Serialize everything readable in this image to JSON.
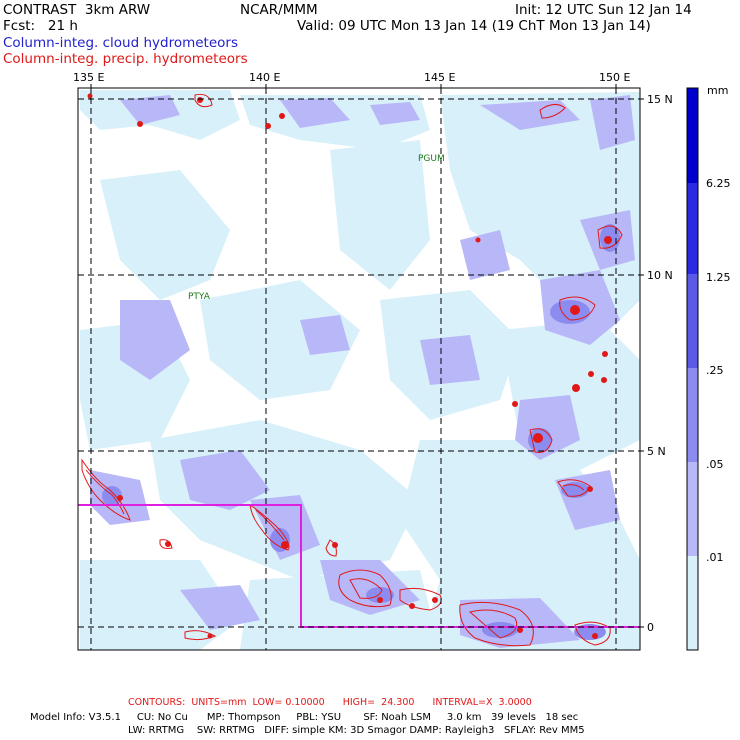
{
  "header": {
    "experiment": "CONTRAST  3km ARW",
    "forecast": "Fcst:   21 h",
    "center": "NCAR/MMM",
    "init": "Init: 12 UTC Sun 12 Jan 14",
    "valid": "Valid: 09 UTC Mon 13 Jan 14 (19 ChT Mon 13 Jan 14)",
    "field_blue": "Column-integ. cloud hydrometeors",
    "field_red": "Column-integ. precip. hydrometeors"
  },
  "map": {
    "lon_labels": [
      "135 E",
      "140 E",
      "145 E",
      "150 E"
    ],
    "lat_labels": [
      "15 N",
      "10 N",
      "5 N",
      "0"
    ],
    "stations": [
      "PGUM",
      "PTYA"
    ]
  },
  "colorbar": {
    "unit": "mm",
    "labels": [
      "6.25",
      "1.25",
      ".25",
      ".05",
      ".01"
    ],
    "colors": [
      "#0000cc",
      "#2a2ae0",
      "#5a5ae6",
      "#8c8cf0",
      "#b8b8f8",
      "#d8f0fa",
      "#ffffff"
    ]
  },
  "footer": {
    "contours": "CONTOURS:  UNITS=mm  LOW= 0.10000      HIGH=  24.300      INTERVAL=X  3.0000",
    "model_line1": "Model Info: V3.5.1     CU: No Cu      MP: Thompson     PBL: YSU       SF: Noah LSM     3.0 km   39 levels   18 sec",
    "model_line2": "LW: RRTMG    SW: RRTMG   DIFF: simple KM: 3D Smagor DAMP: Rayleigh3   SFLAY: Rev MM5"
  }
}
